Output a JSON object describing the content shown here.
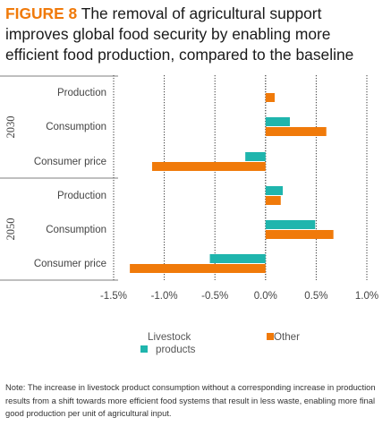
{
  "title": {
    "figure_label": "FIGURE 8",
    "text": " The removal of agricultural support improves global food security by enabling more efficient food production, compared to the baseline"
  },
  "chart_data": {
    "type": "bar",
    "orientation": "horizontal",
    "groups": [
      "2030",
      "2050"
    ],
    "categories": [
      "Production",
      "Consumption",
      "Consumer price"
    ],
    "series": [
      {
        "name": "Livestock products",
        "color": "#1fb5ad",
        "values": {
          "2030": [
            0.0,
            0.24,
            -0.2
          ],
          "2050": [
            0.17,
            0.49,
            -0.55
          ]
        }
      },
      {
        "name": "Other",
        "color": "#f07a0a",
        "values": {
          "2030": [
            0.09,
            0.6,
            -1.12
          ],
          "2050": [
            0.15,
            0.67,
            -1.34
          ]
        }
      }
    ],
    "xlim": [
      -1.5,
      1.0
    ],
    "xticks": [
      "-1.5%",
      "-1.0%",
      "-0.5%",
      "0.0%",
      "0.5%",
      "1.0%"
    ],
    "tick_values": [
      -1.5,
      -1.0,
      -0.5,
      0.0,
      0.5,
      1.0
    ],
    "grid": "vertical",
    "legend_position": "bottom"
  },
  "legend": {
    "livestock_line1": "Livestock",
    "livestock_line2": "products",
    "other": "Other"
  },
  "note": "Note: The increase in livestock product consumption without a corresponding increase in production results from a shift towards more efficient food systems that result in less waste, enabling more final good production per unit of agricultural input."
}
